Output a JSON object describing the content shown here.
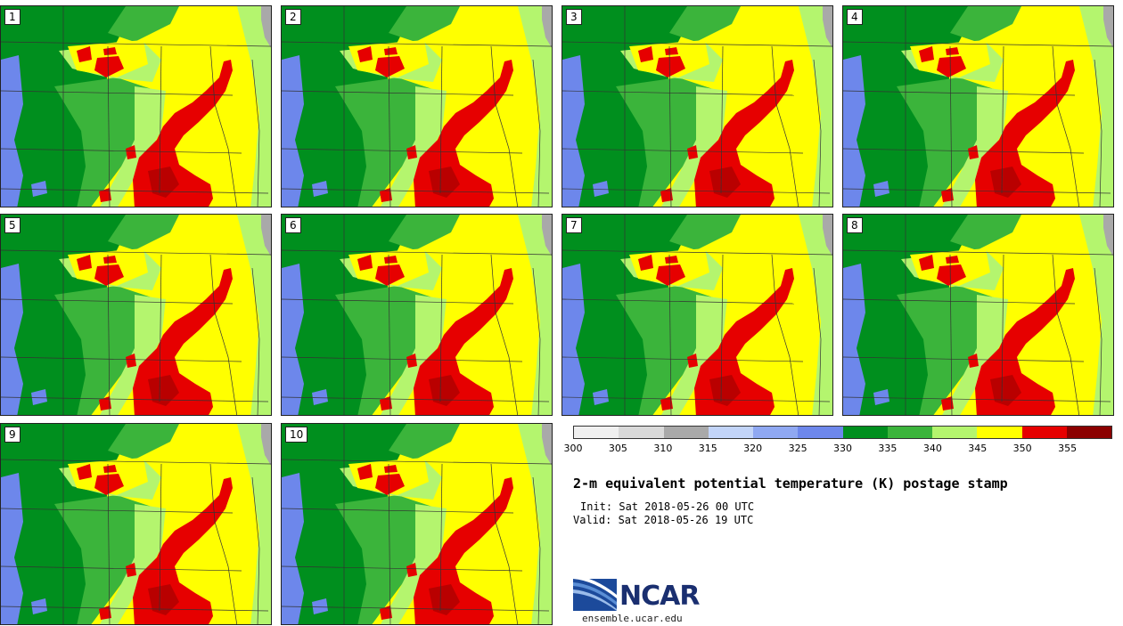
{
  "panels": [
    {
      "label": "1"
    },
    {
      "label": "2"
    },
    {
      "label": "3"
    },
    {
      "label": "4"
    },
    {
      "label": "5"
    },
    {
      "label": "6"
    },
    {
      "label": "7"
    },
    {
      "label": "8"
    },
    {
      "label": "9"
    },
    {
      "label": "10"
    }
  ],
  "colorbar": {
    "ticks": [
      "300",
      "305",
      "310",
      "315",
      "320",
      "325",
      "330",
      "335",
      "340",
      "345",
      "350",
      "355"
    ],
    "colors": [
      "#f0f0f0",
      "#d9d9d9",
      "#a9a9a9",
      "#c2d4f8",
      "#8fa8f2",
      "#6d87eb",
      "#008f1e",
      "#3bb43b",
      "#b4f56e",
      "#ffff00",
      "#e60000",
      "#8b0000"
    ]
  },
  "title": "2-m equivalent potential temperature (K) postage stamp",
  "init": "Init: Sat 2018-05-26 00 UTC",
  "valid": "Valid: Sat 2018-05-26 19 UTC",
  "logo": {
    "text": "NCAR",
    "url": "ensemble.ucar.edu"
  }
}
